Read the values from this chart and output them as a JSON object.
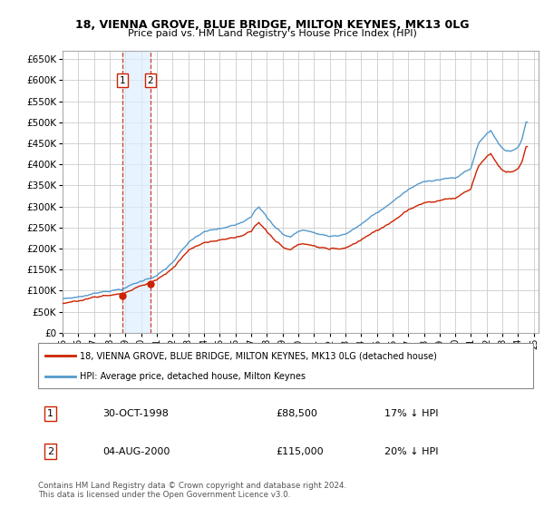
{
  "title_line1": "18, VIENNA GROVE, BLUE BRIDGE, MILTON KEYNES, MK13 0LG",
  "title_line2": "Price paid vs. HM Land Registry's House Price Index (HPI)",
  "ylabel_vals": [
    0,
    50000,
    100000,
    150000,
    200000,
    250000,
    300000,
    350000,
    400000,
    450000,
    500000,
    550000,
    600000,
    650000
  ],
  "ylim": [
    0,
    670000
  ],
  "xlim_start": 1995.0,
  "xlim_end": 2025.3,
  "hpi_color": "#5599cc",
  "price_color": "#cc2200",
  "shade_color": "#ddeeff",
  "background_color": "#ffffff",
  "grid_color": "#cccccc",
  "t1_year": 1998.83,
  "t1_price": 88500,
  "t2_year": 2000.58,
  "t2_price": 115000,
  "transactions": [
    {
      "date_num": 1998.83,
      "price": 88500,
      "label": "1"
    },
    {
      "date_num": 2000.58,
      "price": 115000,
      "label": "2"
    }
  ],
  "legend_entries": [
    {
      "label": "18, VIENNA GROVE, BLUE BRIDGE, MILTON KEYNES, MK13 0LG (detached house)",
      "color": "#cc2200"
    },
    {
      "label": "HPI: Average price, detached house, Milton Keynes",
      "color": "#5599cc"
    }
  ],
  "table_rows": [
    {
      "num": "1",
      "date": "30-OCT-1998",
      "price": "£88,500",
      "hpi": "17% ↓ HPI"
    },
    {
      "num": "2",
      "date": "04-AUG-2000",
      "price": "£115,000",
      "hpi": "20% ↓ HPI"
    }
  ],
  "footer": "Contains HM Land Registry data © Crown copyright and database right 2024.\nThis data is licensed under the Open Government Licence v3.0.",
  "xtick_labels": [
    "95",
    "96",
    "97",
    "98",
    "99",
    "00",
    "01",
    "02",
    "03",
    "04",
    "05",
    "06",
    "07",
    "08",
    "09",
    "10",
    "11",
    "12",
    "13",
    "14",
    "15",
    "16",
    "17",
    "18",
    "19",
    "20",
    "21",
    "22",
    "23",
    "24",
    "25"
  ],
  "xtick_years": [
    1995,
    1996,
    1997,
    1998,
    1999,
    2000,
    2001,
    2002,
    2003,
    2004,
    2005,
    2006,
    2007,
    2008,
    2009,
    2010,
    2011,
    2012,
    2013,
    2014,
    2015,
    2016,
    2017,
    2018,
    2019,
    2020,
    2021,
    2022,
    2023,
    2024,
    2025
  ]
}
